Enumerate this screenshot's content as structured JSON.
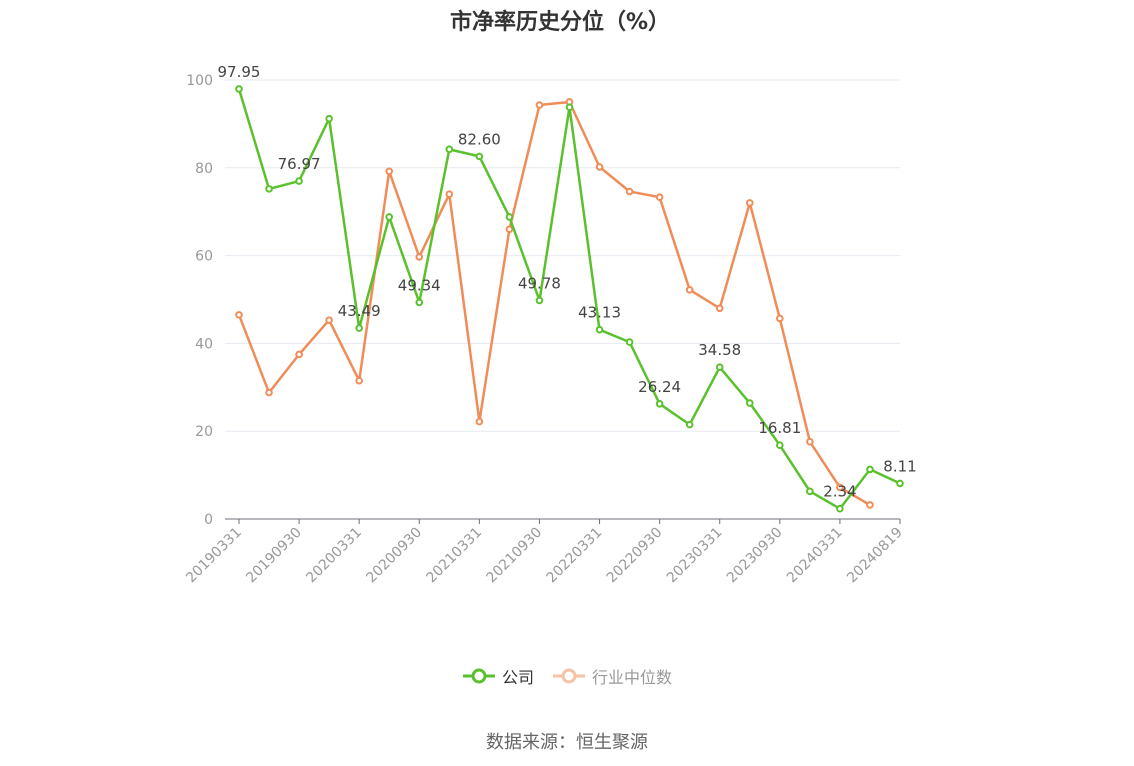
{
  "chart_data": {
    "type": "line",
    "title": "市净率历史分位（%）",
    "xlabel": "",
    "ylabel": "",
    "ylim": [
      0,
      100
    ],
    "yticks": [
      0,
      20,
      40,
      60,
      80,
      100
    ],
    "grid": true,
    "legend_position": "bottom",
    "x": [
      "20190331",
      "20190630",
      "20190930",
      "20191231",
      "20200331",
      "20200630",
      "20200930",
      "20201231",
      "20210331",
      "20210630",
      "20210930",
      "20211231",
      "20220331",
      "20220630",
      "20220930",
      "20221231",
      "20230331",
      "20230630",
      "20230930",
      "20231231",
      "20240331",
      "20240630",
      "20240819"
    ],
    "xtick_labels": [
      "20190331",
      "20190930",
      "20200331",
      "20200930",
      "20210331",
      "20210930",
      "20220331",
      "20220930",
      "20230331",
      "20230930",
      "20240331",
      "20240819"
    ],
    "series": [
      {
        "name": "公司",
        "color": "#5ac12d",
        "values": [
          97.95,
          75.2,
          76.97,
          91.2,
          43.49,
          68.8,
          49.34,
          84.2,
          82.6,
          68.8,
          49.78,
          93.8,
          43.13,
          40.3,
          26.24,
          21.5,
          34.58,
          26.4,
          16.81,
          6.3,
          2.34,
          11.3,
          8.11
        ],
        "data_labels": {
          "0": "97.95",
          "2": "76.97",
          "4": "43.49",
          "6": "49.34",
          "8": "82.60",
          "10": "49.78",
          "12": "43.13",
          "14": "26.24",
          "16": "34.58",
          "18": "16.81",
          "20": "2.34",
          "22": "8.11"
        }
      },
      {
        "name": "行业中位数",
        "color": "#f08c58",
        "values": [
          46.5,
          28.8,
          37.5,
          45.3,
          31.5,
          79.2,
          59.7,
          74.0,
          22.2,
          66.0,
          94.3,
          95.0,
          80.2,
          74.6,
          73.3,
          52.2,
          48.0,
          72.0,
          45.7,
          17.6,
          7.2,
          3.2,
          null
        ]
      }
    ]
  },
  "source": "数据来源：恒生聚源"
}
